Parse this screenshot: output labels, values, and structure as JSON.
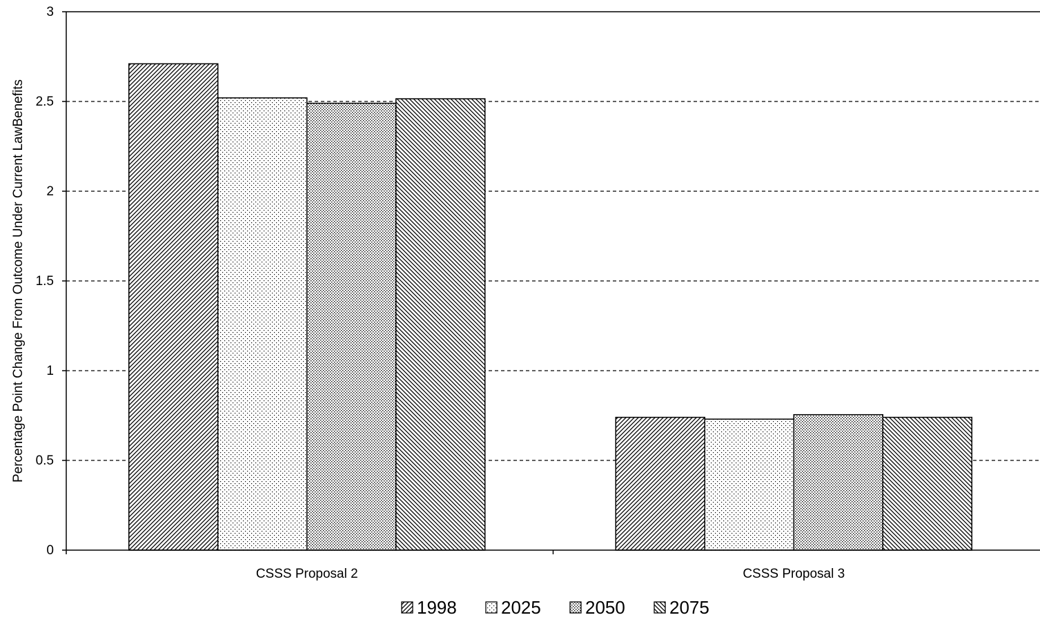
{
  "chart_data": {
    "type": "bar",
    "categories": [
      "CSSS Proposal 2",
      "CSSS Proposal 3"
    ],
    "series": [
      {
        "name": "1998",
        "values": [
          2.71,
          0.74
        ]
      },
      {
        "name": "2025",
        "values": [
          2.52,
          0.73
        ]
      },
      {
        "name": "2050",
        "values": [
          2.49,
          0.755
        ]
      },
      {
        "name": "2075",
        "values": [
          2.515,
          0.74
        ]
      }
    ],
    "ylabel": "Percentage Point Change From Outcome Under Current LawBenefits",
    "xlabel": "",
    "ylim": [
      0,
      3
    ],
    "yticks": [
      "0",
      "0.5",
      "1",
      "1.5",
      "2",
      "2.5",
      "3"
    ],
    "grid": "horizontal-dashed",
    "legend": "bottom-center"
  }
}
